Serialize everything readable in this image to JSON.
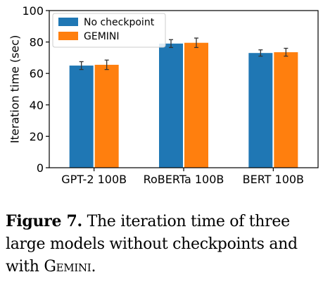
{
  "chart_data": {
    "type": "bar",
    "categories": [
      "GPT-2 100B",
      "RoBERTa 100B",
      "BERT 100B"
    ],
    "series": [
      {
        "name": "No checkpoint",
        "values": [
          65,
          79,
          73
        ],
        "errors": [
          2.5,
          2.5,
          2.0
        ],
        "color": "#1f77b4"
      },
      {
        "name": "GEMINI",
        "values": [
          65.5,
          79.5,
          73.5
        ],
        "errors": [
          3.0,
          3.0,
          2.5
        ],
        "color": "#ff7f0e"
      }
    ],
    "ylabel": "Iteration time (sec)",
    "ylim": [
      0,
      100
    ],
    "yticks": [
      0,
      20,
      40,
      60,
      80,
      100
    ],
    "legend": "top-left",
    "grid": false
  },
  "caption": {
    "label": "Figure 7.",
    "text_before": " The iteration time of three large models without checkpoints and with ",
    "system_name": "Gemini",
    "text_after": "."
  }
}
